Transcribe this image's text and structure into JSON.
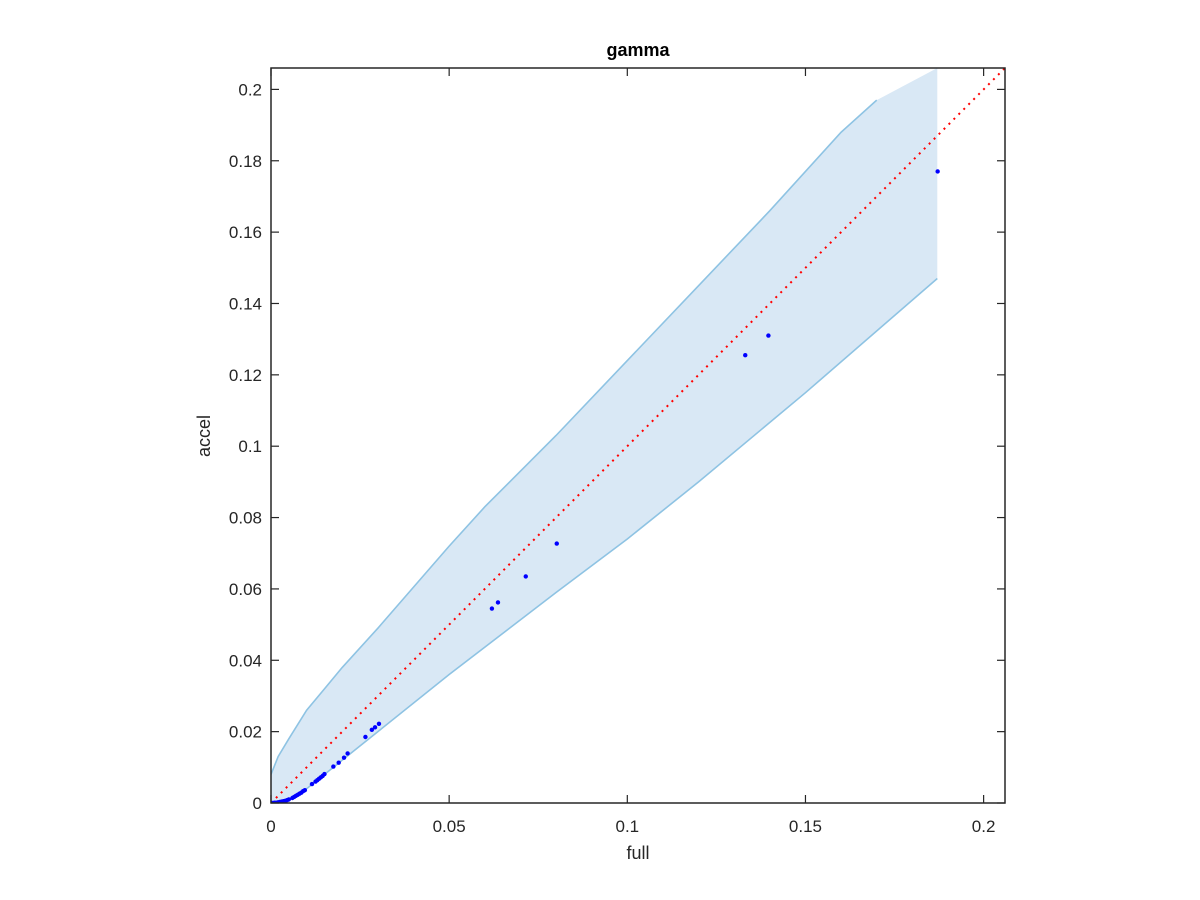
{
  "chart_data": {
    "type": "scatter",
    "title": "gamma",
    "xlabel": "full",
    "ylabel": "accel",
    "xlim": [
      0,
      0.206
    ],
    "ylim": [
      0,
      0.206
    ],
    "xticks": [
      0,
      0.05,
      0.1,
      0.15,
      0.2
    ],
    "yticks": [
      0,
      0.02,
      0.04,
      0.06,
      0.08,
      0.1,
      0.12,
      0.14,
      0.16,
      0.18,
      0.2
    ],
    "xtick_labels": [
      "0",
      "0.05",
      "0.1",
      "0.15",
      "0.2"
    ],
    "ytick_labels": [
      "0",
      "0.02",
      "0.04",
      "0.06",
      "0.08",
      "0.1",
      "0.12",
      "0.14",
      "0.16",
      "0.18",
      "0.2"
    ],
    "grid": false,
    "colors": {
      "points": "#0000ff",
      "reference_line": "#ff0000",
      "band_fill": "#d9e8f5",
      "band_edge": "#8ec3e3",
      "axes": "#262626"
    },
    "reference_line": {
      "style": "dotted",
      "x": [
        0,
        0.206
      ],
      "y": [
        0,
        0.206
      ]
    },
    "band": {
      "x_end": 0.187,
      "upper": {
        "x": [
          0,
          0.002,
          0.005,
          0.01,
          0.015,
          0.02,
          0.03,
          0.05,
          0.06,
          0.08,
          0.1,
          0.12,
          0.14,
          0.16,
          0.17
        ],
        "y": [
          0.008,
          0.013,
          0.018,
          0.026,
          0.032,
          0.038,
          0.049,
          0.072,
          0.083,
          0.103,
          0.124,
          0.145,
          0.166,
          0.188,
          0.197
        ]
      },
      "lower": {
        "x": [
          0,
          0.005,
          0.01,
          0.02,
          0.03,
          0.05,
          0.08,
          0.1,
          0.12,
          0.15,
          0.187
        ],
        "y": [
          0,
          0.001,
          0.004,
          0.012,
          0.02,
          0.036,
          0.059,
          0.074,
          0.09,
          0.115,
          0.147
        ]
      }
    },
    "points": {
      "x": [
        0,
        0.0005,
        0.001,
        0.0015,
        0.002,
        0.0025,
        0.003,
        0.0035,
        0.004,
        0.0045,
        0.005,
        0.006,
        0.0065,
        0.007,
        0.0075,
        0.008,
        0.0085,
        0.009,
        0.0095,
        0.0115,
        0.0125,
        0.013,
        0.0135,
        0.014,
        0.0145,
        0.015,
        0.0175,
        0.019,
        0.0205,
        0.0215,
        0.0265,
        0.0283,
        0.0292,
        0.0303,
        0.062,
        0.0637,
        0.0715,
        0.0802,
        0.1331,
        0.1396,
        0.1871
      ],
      "y": [
        0,
        0,
        0.0001,
        0.0001,
        0.0002,
        0.0003,
        0.0004,
        0.0005,
        0.0006,
        0.0008,
        0.001,
        0.0014,
        0.0017,
        0.002,
        0.0023,
        0.0026,
        0.0029,
        0.0033,
        0.0036,
        0.0053,
        0.006,
        0.0064,
        0.0068,
        0.0072,
        0.0076,
        0.0081,
        0.0102,
        0.0113,
        0.0127,
        0.0139,
        0.0185,
        0.0205,
        0.0212,
        0.0222,
        0.0545,
        0.0562,
        0.0635,
        0.0727,
        0.1255,
        0.131,
        0.177
      ]
    }
  }
}
